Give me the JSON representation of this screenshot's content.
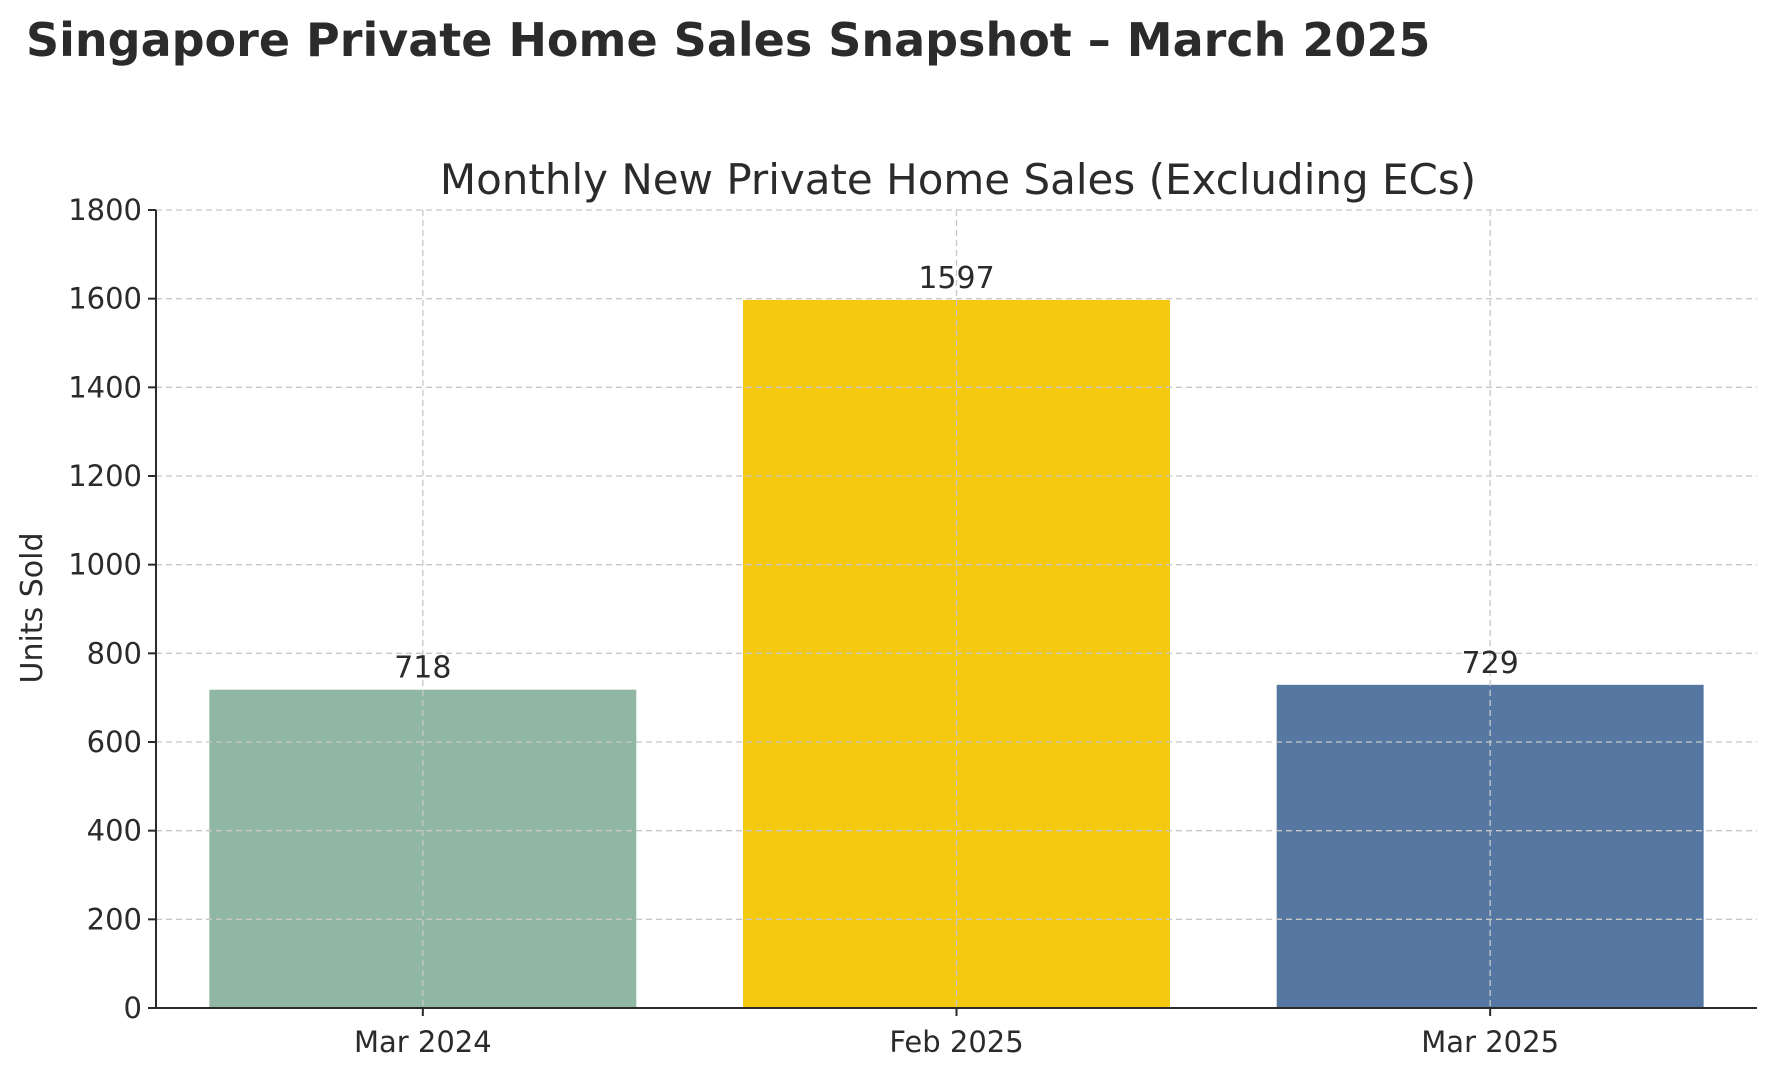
{
  "page_title": "Singapore Private Home Sales Snapshot – March 2025",
  "chart_data": {
    "type": "bar",
    "title": "Monthly New Private Home Sales (Excluding ECs)",
    "xlabel": "",
    "ylabel": "Units Sold",
    "categories": [
      "Mar 2024",
      "Feb 2025",
      "Mar 2025"
    ],
    "values": [
      718,
      1597,
      729
    ],
    "data_labels": [
      "718",
      "1597",
      "729"
    ],
    "colors": [
      "#8fb7a3",
      "#f5c90f",
      "#5577a2"
    ],
    "ylim": [
      0,
      1800
    ],
    "yticks": [
      0,
      200,
      400,
      600,
      800,
      1000,
      1200,
      1400,
      1600,
      1800
    ],
    "ytick_labels": [
      "0",
      "200",
      "400",
      "600",
      "800",
      "1000",
      "1200",
      "1400",
      "1600",
      "1800"
    ],
    "grid": true,
    "legend": "none"
  }
}
